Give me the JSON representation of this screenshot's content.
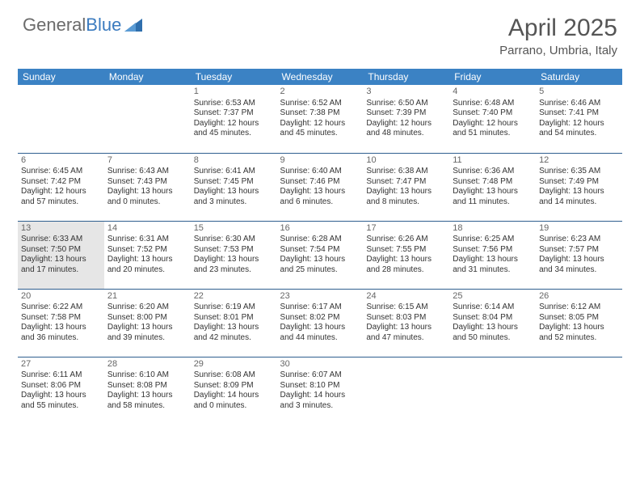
{
  "brand": {
    "text1": "General",
    "text2": "Blue"
  },
  "title": "April 2025",
  "location": "Parrano, Umbria, Italy",
  "colors": {
    "header_bg": "#3b82c4",
    "header_text": "#ffffff",
    "cell_border": "#2f5f8f",
    "today_bg": "#e6e6e6",
    "brand_gray": "#6b6b6b",
    "brand_blue": "#3b7bbf"
  },
  "day_headers": [
    "Sunday",
    "Monday",
    "Tuesday",
    "Wednesday",
    "Thursday",
    "Friday",
    "Saturday"
  ],
  "weeks": [
    [
      null,
      null,
      {
        "n": "1",
        "sr": "Sunrise: 6:53 AM",
        "ss": "Sunset: 7:37 PM",
        "d1": "Daylight: 12 hours",
        "d2": "and 45 minutes."
      },
      {
        "n": "2",
        "sr": "Sunrise: 6:52 AM",
        "ss": "Sunset: 7:38 PM",
        "d1": "Daylight: 12 hours",
        "d2": "and 45 minutes."
      },
      {
        "n": "3",
        "sr": "Sunrise: 6:50 AM",
        "ss": "Sunset: 7:39 PM",
        "d1": "Daylight: 12 hours",
        "d2": "and 48 minutes."
      },
      {
        "n": "4",
        "sr": "Sunrise: 6:48 AM",
        "ss": "Sunset: 7:40 PM",
        "d1": "Daylight: 12 hours",
        "d2": "and 51 minutes."
      },
      {
        "n": "5",
        "sr": "Sunrise: 6:46 AM",
        "ss": "Sunset: 7:41 PM",
        "d1": "Daylight: 12 hours",
        "d2": "and 54 minutes."
      }
    ],
    [
      {
        "n": "6",
        "sr": "Sunrise: 6:45 AM",
        "ss": "Sunset: 7:42 PM",
        "d1": "Daylight: 12 hours",
        "d2": "and 57 minutes."
      },
      {
        "n": "7",
        "sr": "Sunrise: 6:43 AM",
        "ss": "Sunset: 7:43 PM",
        "d1": "Daylight: 13 hours",
        "d2": "and 0 minutes."
      },
      {
        "n": "8",
        "sr": "Sunrise: 6:41 AM",
        "ss": "Sunset: 7:45 PM",
        "d1": "Daylight: 13 hours",
        "d2": "and 3 minutes."
      },
      {
        "n": "9",
        "sr": "Sunrise: 6:40 AM",
        "ss": "Sunset: 7:46 PM",
        "d1": "Daylight: 13 hours",
        "d2": "and 6 minutes."
      },
      {
        "n": "10",
        "sr": "Sunrise: 6:38 AM",
        "ss": "Sunset: 7:47 PM",
        "d1": "Daylight: 13 hours",
        "d2": "and 8 minutes."
      },
      {
        "n": "11",
        "sr": "Sunrise: 6:36 AM",
        "ss": "Sunset: 7:48 PM",
        "d1": "Daylight: 13 hours",
        "d2": "and 11 minutes."
      },
      {
        "n": "12",
        "sr": "Sunrise: 6:35 AM",
        "ss": "Sunset: 7:49 PM",
        "d1": "Daylight: 13 hours",
        "d2": "and 14 minutes."
      }
    ],
    [
      {
        "n": "13",
        "sr": "Sunrise: 6:33 AM",
        "ss": "Sunset: 7:50 PM",
        "d1": "Daylight: 13 hours",
        "d2": "and 17 minutes.",
        "today": true
      },
      {
        "n": "14",
        "sr": "Sunrise: 6:31 AM",
        "ss": "Sunset: 7:52 PM",
        "d1": "Daylight: 13 hours",
        "d2": "and 20 minutes."
      },
      {
        "n": "15",
        "sr": "Sunrise: 6:30 AM",
        "ss": "Sunset: 7:53 PM",
        "d1": "Daylight: 13 hours",
        "d2": "and 23 minutes."
      },
      {
        "n": "16",
        "sr": "Sunrise: 6:28 AM",
        "ss": "Sunset: 7:54 PM",
        "d1": "Daylight: 13 hours",
        "d2": "and 25 minutes."
      },
      {
        "n": "17",
        "sr": "Sunrise: 6:26 AM",
        "ss": "Sunset: 7:55 PM",
        "d1": "Daylight: 13 hours",
        "d2": "and 28 minutes."
      },
      {
        "n": "18",
        "sr": "Sunrise: 6:25 AM",
        "ss": "Sunset: 7:56 PM",
        "d1": "Daylight: 13 hours",
        "d2": "and 31 minutes."
      },
      {
        "n": "19",
        "sr": "Sunrise: 6:23 AM",
        "ss": "Sunset: 7:57 PM",
        "d1": "Daylight: 13 hours",
        "d2": "and 34 minutes."
      }
    ],
    [
      {
        "n": "20",
        "sr": "Sunrise: 6:22 AM",
        "ss": "Sunset: 7:58 PM",
        "d1": "Daylight: 13 hours",
        "d2": "and 36 minutes."
      },
      {
        "n": "21",
        "sr": "Sunrise: 6:20 AM",
        "ss": "Sunset: 8:00 PM",
        "d1": "Daylight: 13 hours",
        "d2": "and 39 minutes."
      },
      {
        "n": "22",
        "sr": "Sunrise: 6:19 AM",
        "ss": "Sunset: 8:01 PM",
        "d1": "Daylight: 13 hours",
        "d2": "and 42 minutes."
      },
      {
        "n": "23",
        "sr": "Sunrise: 6:17 AM",
        "ss": "Sunset: 8:02 PM",
        "d1": "Daylight: 13 hours",
        "d2": "and 44 minutes."
      },
      {
        "n": "24",
        "sr": "Sunrise: 6:15 AM",
        "ss": "Sunset: 8:03 PM",
        "d1": "Daylight: 13 hours",
        "d2": "and 47 minutes."
      },
      {
        "n": "25",
        "sr": "Sunrise: 6:14 AM",
        "ss": "Sunset: 8:04 PM",
        "d1": "Daylight: 13 hours",
        "d2": "and 50 minutes."
      },
      {
        "n": "26",
        "sr": "Sunrise: 6:12 AM",
        "ss": "Sunset: 8:05 PM",
        "d1": "Daylight: 13 hours",
        "d2": "and 52 minutes."
      }
    ],
    [
      {
        "n": "27",
        "sr": "Sunrise: 6:11 AM",
        "ss": "Sunset: 8:06 PM",
        "d1": "Daylight: 13 hours",
        "d2": "and 55 minutes."
      },
      {
        "n": "28",
        "sr": "Sunrise: 6:10 AM",
        "ss": "Sunset: 8:08 PM",
        "d1": "Daylight: 13 hours",
        "d2": "and 58 minutes."
      },
      {
        "n": "29",
        "sr": "Sunrise: 6:08 AM",
        "ss": "Sunset: 8:09 PM",
        "d1": "Daylight: 14 hours",
        "d2": "and 0 minutes."
      },
      {
        "n": "30",
        "sr": "Sunrise: 6:07 AM",
        "ss": "Sunset: 8:10 PM",
        "d1": "Daylight: 14 hours",
        "d2": "and 3 minutes."
      },
      null,
      null,
      null
    ]
  ]
}
